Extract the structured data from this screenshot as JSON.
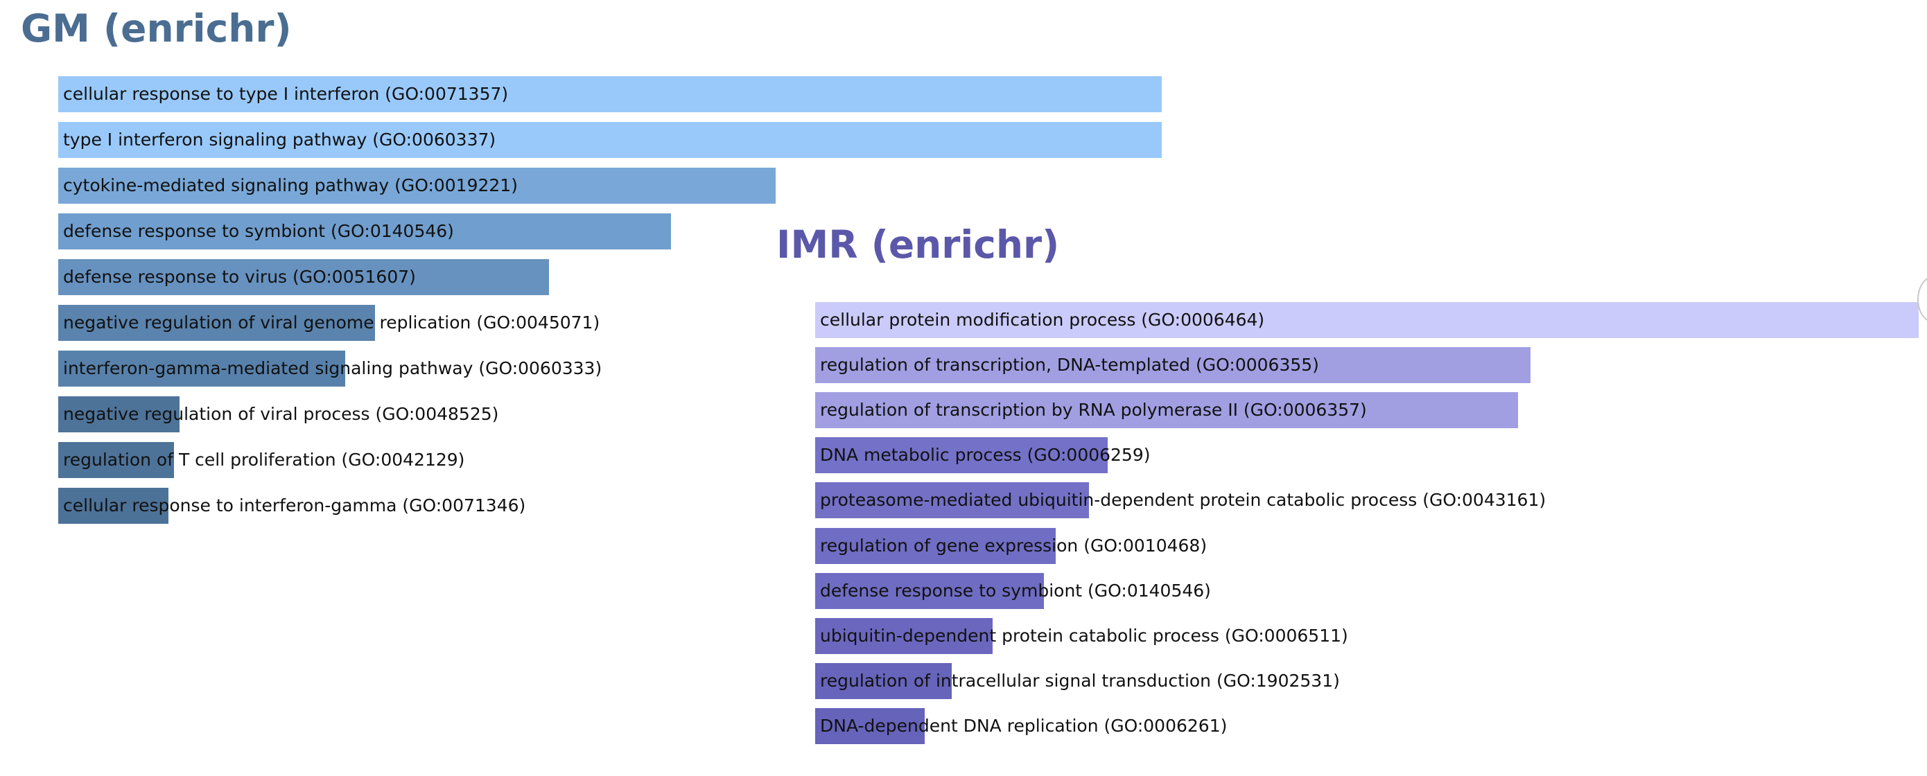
{
  "chart_data": [
    {
      "type": "bar",
      "orientation": "horizontal",
      "title": "GM (enrichr)",
      "title_color": "#4a6d91",
      "categories": [
        "cellular response to type I interferon (GO:0071357)",
        "type I interferon signaling pathway (GO:0060337)",
        "cytokine-mediated signaling pathway (GO:0019221)",
        "defense response to symbiont (GO:0140546)",
        "defense response to virus (GO:0051607)",
        "negative regulation of viral genome replication (GO:0045071)",
        "interferon-gamma-mediated signaling pathway (GO:0060333)",
        "negative regulation of viral process (GO:0048525)",
        "regulation of T cell proliferation (GO:0042129)",
        "cellular response to interferon-gamma (GO:0071346)"
      ],
      "values": [
        1.0,
        1.0,
        0.65,
        0.555,
        0.445,
        0.287,
        0.26,
        0.11,
        0.105,
        0.1
      ],
      "colors": [
        "#99c9fb",
        "#99c9fb",
        "#79a8d8",
        "#709ece",
        "#6792c0",
        "#5a83ad",
        "#5781ab",
        "#4e7399",
        "#4e7399",
        "#4d7298"
      ]
    },
    {
      "type": "bar",
      "orientation": "horizontal",
      "title": "IMR (enrichr)",
      "title_color": "#5b58aa",
      "categories": [
        "cellular protein modification process (GO:0006464)",
        "regulation of transcription, DNA-templated (GO:0006355)",
        "regulation of transcription by RNA polymerase II (GO:0006357)",
        "DNA metabolic process (GO:0006259)",
        "proteasome-mediated ubiquitin-dependent protein catabolic process (GO:0043161)",
        "regulation of gene expression (GO:0010468)",
        "defense response to symbiont (GO:0140546)",
        "ubiquitin-dependent protein catabolic process (GO:0006511)",
        "regulation of intracellular signal transduction (GO:1902531)",
        "DNA-dependent DNA replication (GO:0006261)"
      ],
      "values": [
        1.0,
        0.648,
        0.637,
        0.265,
        0.248,
        0.218,
        0.207,
        0.161,
        0.124,
        0.099
      ],
      "colors": [
        "#cbcbfb",
        "#a19fe2",
        "#a19fe2",
        "#7471c8",
        "#7370c6",
        "#706dc4",
        "#6f6cc3",
        "#6b67bf",
        "#6764bb",
        "#6663ba"
      ]
    }
  ]
}
